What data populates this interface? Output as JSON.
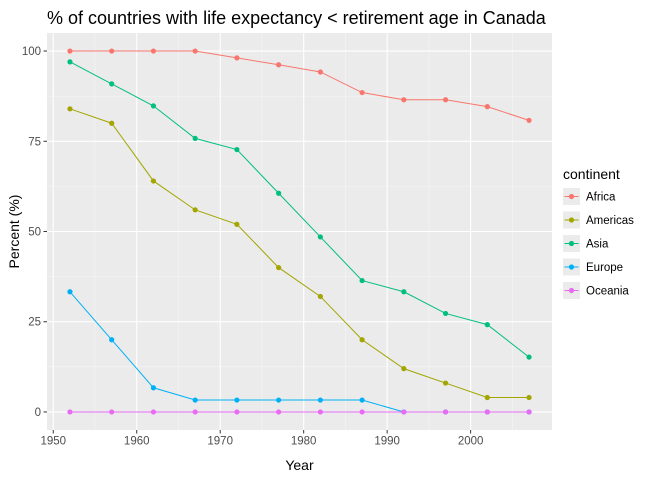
{
  "chart_data": {
    "type": "line",
    "title": "% of countries with life expectancy < retirement age in Canada",
    "xlabel": "Year",
    "ylabel": "Percent (%)",
    "xlim": [
      1949.25,
      2009.75
    ],
    "ylim": [
      -5,
      105
    ],
    "x_ticks": [
      1950,
      1960,
      1970,
      1980,
      1990,
      2000
    ],
    "y_ticks": [
      0,
      25,
      50,
      75,
      100
    ],
    "grid": true,
    "legend": {
      "title": "continent",
      "position": "right"
    },
    "x": [
      1952,
      1957,
      1962,
      1967,
      1972,
      1977,
      1982,
      1987,
      1992,
      1997,
      2002,
      2007
    ],
    "series": [
      {
        "name": "Africa",
        "color": "#F8766D",
        "values": [
          100,
          100,
          100,
          100,
          98.1,
          96.2,
          94.2,
          88.5,
          86.5,
          86.5,
          84.6,
          80.8
        ]
      },
      {
        "name": "Americas",
        "color": "#A3A500",
        "values": [
          84,
          80,
          64,
          56,
          52,
          40,
          32,
          20,
          12,
          8,
          4,
          4
        ]
      },
      {
        "name": "Asia",
        "color": "#00BF7D",
        "values": [
          97,
          90.9,
          84.8,
          75.8,
          72.7,
          60.6,
          48.5,
          36.4,
          33.3,
          27.3,
          24.2,
          15.2
        ]
      },
      {
        "name": "Europe",
        "color": "#00B0F6",
        "values": [
          33.3,
          20,
          6.7,
          3.3,
          3.3,
          3.3,
          3.3,
          3.3,
          0,
          0,
          0,
          0
        ]
      },
      {
        "name": "Oceania",
        "color": "#E76BF3",
        "values": [
          0,
          0,
          0,
          0,
          0,
          0,
          0,
          0,
          0,
          0,
          0,
          0
        ]
      }
    ]
  }
}
